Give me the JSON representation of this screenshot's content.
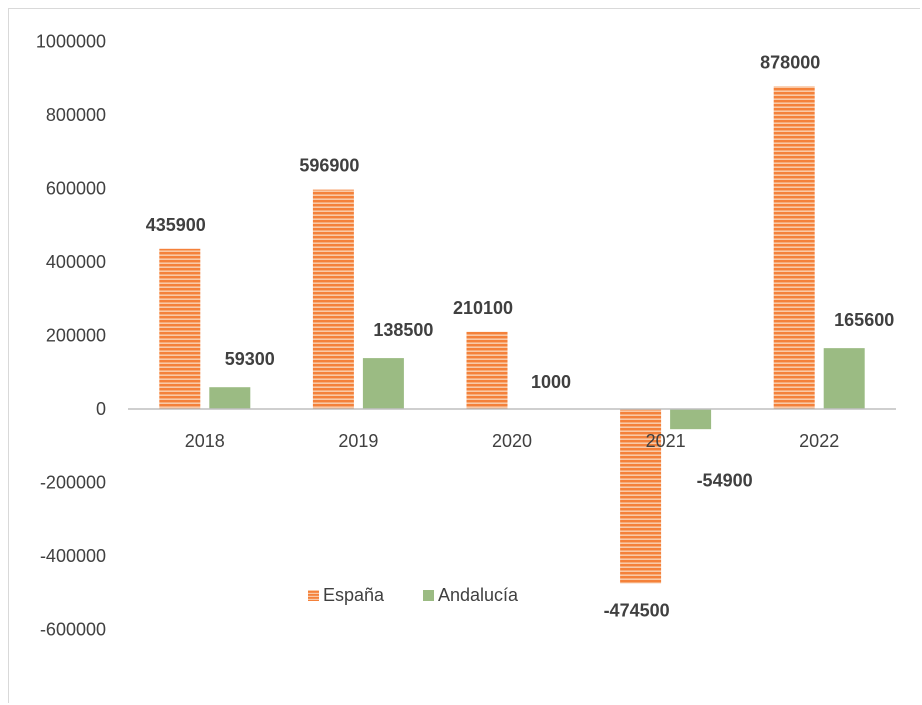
{
  "chart_data": {
    "type": "bar",
    "title": "",
    "xlabel": "",
    "ylabel": "",
    "categories": [
      "2018",
      "2019",
      "2020",
      "2021",
      "2022"
    ],
    "series": [
      {
        "name": "España",
        "values": [
          435900,
          596900,
          210100,
          -474500,
          878000
        ],
        "color": "#f4813a",
        "pattern": "horizontal-stripes"
      },
      {
        "name": "Andalucía",
        "values": [
          59300,
          138500,
          1000,
          -54900,
          165600
        ],
        "color": "#9bbb83"
      }
    ],
    "data_labels": [
      [
        "435900",
        "596900",
        "210100",
        "-474500",
        "878000"
      ],
      [
        "59300",
        "138500",
        "1000",
        "-54900",
        "165600"
      ]
    ],
    "ylim": [
      -600000,
      1000000
    ],
    "yticks": [
      -600000,
      -400000,
      -200000,
      0,
      200000,
      400000,
      600000,
      800000,
      1000000
    ],
    "ytick_labels": [
      "-600000",
      "-400000",
      "-200000",
      "0",
      "200000",
      "400000",
      "600000",
      "800000",
      "1000000"
    ],
    "grid": false,
    "legend_position": "bottom-center"
  }
}
